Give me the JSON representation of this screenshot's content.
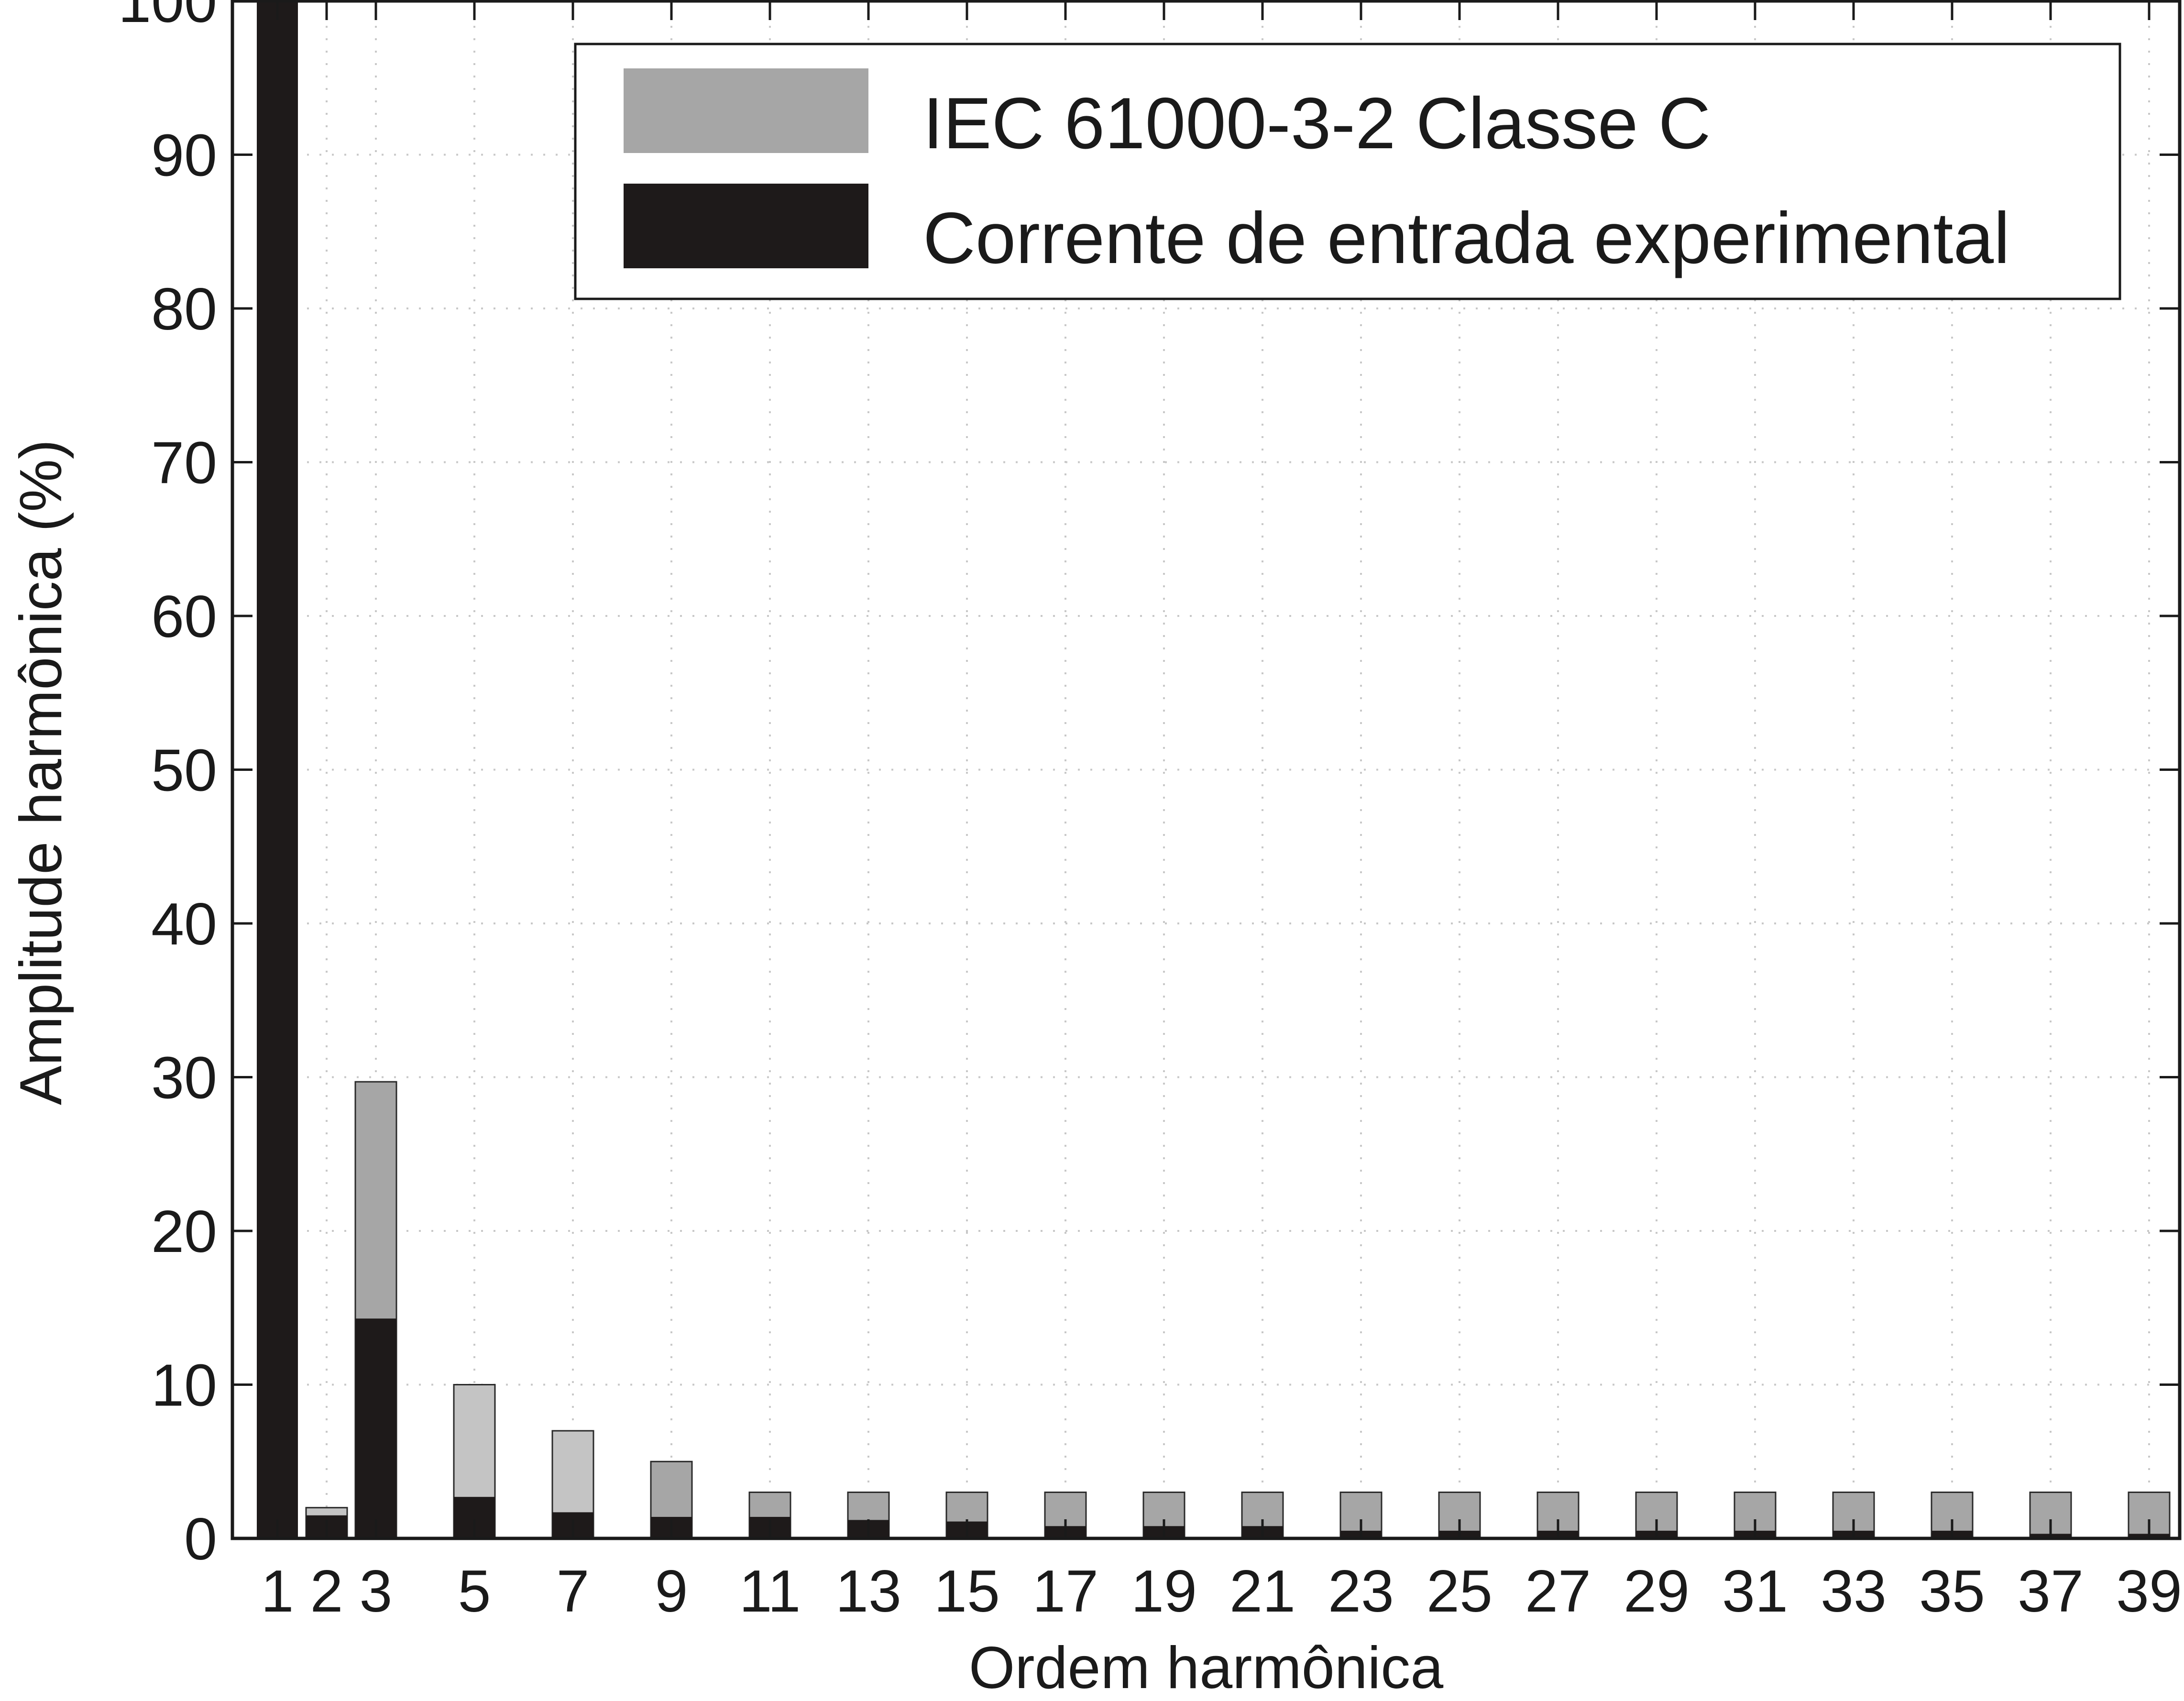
{
  "chart_data": {
    "type": "bar",
    "title": "",
    "xlabel": "Ordem harmônica",
    "ylabel": "Amplitude harmônica (%)",
    "ylim": [
      0,
      100
    ],
    "yticks": [
      0,
      10,
      20,
      30,
      40,
      50,
      60,
      70,
      80,
      90,
      100
    ],
    "categories": [
      "1",
      "2",
      "3",
      "5",
      "7",
      "9",
      "11",
      "13",
      "15",
      "17",
      "19",
      "21",
      "23",
      "25",
      "27",
      "29",
      "31",
      "33",
      "35",
      "37",
      "39"
    ],
    "grid": true,
    "legend_position": "top-right",
    "series": [
      {
        "name": "IEC 61000-3-2 Classe C",
        "color": "#a6a6a6",
        "alt_color": "#c4c4c4",
        "values": [
          null,
          2.0,
          29.7,
          10.0,
          7.0,
          5.0,
          3.0,
          3.0,
          3.0,
          3.0,
          3.0,
          3.0,
          3.0,
          3.0,
          3.0,
          3.0,
          3.0,
          3.0,
          3.0,
          3.0,
          3.0
        ]
      },
      {
        "name": "Corrente de entrada experimental",
        "color": "#1e1a1a",
        "values": [
          100,
          1.5,
          14.3,
          2.7,
          1.7,
          1.4,
          1.4,
          1.2,
          1.1,
          0.8,
          0.8,
          0.8,
          0.5,
          0.5,
          0.5,
          0.5,
          0.5,
          0.5,
          0.5,
          0.3,
          0.3
        ]
      }
    ]
  }
}
